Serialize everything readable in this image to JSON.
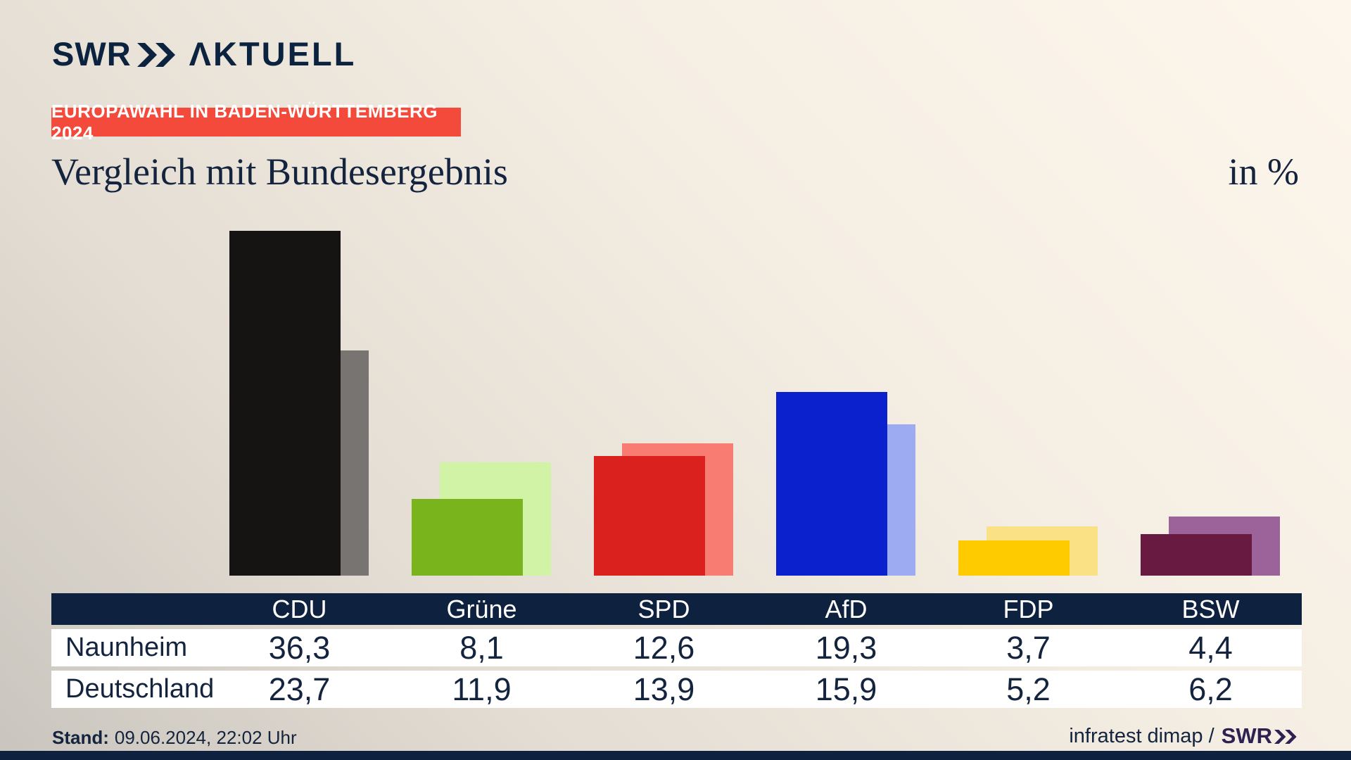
{
  "brand": {
    "swr": "SWR",
    "aktuell": "ΛKTUELL",
    "color": "#0c2340"
  },
  "badge": {
    "label": "EUROPAWAHL IN BADEN-WÜRTTEMBERG 2024",
    "bg": "#f44a3b",
    "text_color": "#ffffff"
  },
  "title": "Vergleich mit Bundesergebnis",
  "unit_label": "in %",
  "chart_data": {
    "type": "bar",
    "categories": [
      "CDU",
      "Grüne",
      "SPD",
      "AfD",
      "FDP",
      "BSW"
    ],
    "series": [
      {
        "name": "Naunheim",
        "values": [
          36.3,
          8.1,
          12.6,
          19.3,
          3.7,
          4.4
        ]
      },
      {
        "name": "Deutschland",
        "values": [
          23.7,
          11.9,
          13.9,
          15.9,
          5.2,
          6.2
        ]
      }
    ],
    "unit": "%",
    "ylim": [
      0,
      37
    ],
    "grid": false,
    "axes_visible": false,
    "legend_position": "none (table below acts as legend)",
    "bar_colors_front": [
      "#151413",
      "#7ab41d",
      "#da211d",
      "#0a21cd",
      "#fecb00",
      "#691a41"
    ],
    "bar_colors_back": [
      "#787471",
      "#d1f3a5",
      "#f97c72",
      "#9dabf3",
      "#fbe186",
      "#9c639b"
    ],
    "layout_hint": "front solid bar = Naunheim; lighter bar offset right/behind = Deutschland"
  },
  "table": {
    "corner_label": "",
    "columns": [
      "CDU",
      "Grüne",
      "SPD",
      "AfD",
      "FDP",
      "BSW"
    ],
    "rows": [
      {
        "label": "Naunheim",
        "cells": [
          "36,3",
          "8,1",
          "12,6",
          "19,3",
          "3,7",
          "4,4"
        ]
      },
      {
        "label": "Deutschland",
        "cells": [
          "23,7",
          "11,9",
          "13,9",
          "15,9",
          "5,2",
          "6,2"
        ]
      }
    ],
    "header_bg": "#0e2240",
    "header_text_color": "#ffffff",
    "row_bg": "#ffffff",
    "text_color": "#14243e"
  },
  "footer": {
    "stand_label": "Stand:",
    "stand_value": "09.06.2024, 22:02 Uhr",
    "source_prefix": "infratest dimap /",
    "source_logo": "SWR",
    "logo_color": "#2d2152"
  },
  "colors": {
    "navy": "#0e2240",
    "accent_red": "#f44a3b",
    "background_light": "#fdf6ec",
    "background_dark": "#c9c5be"
  }
}
